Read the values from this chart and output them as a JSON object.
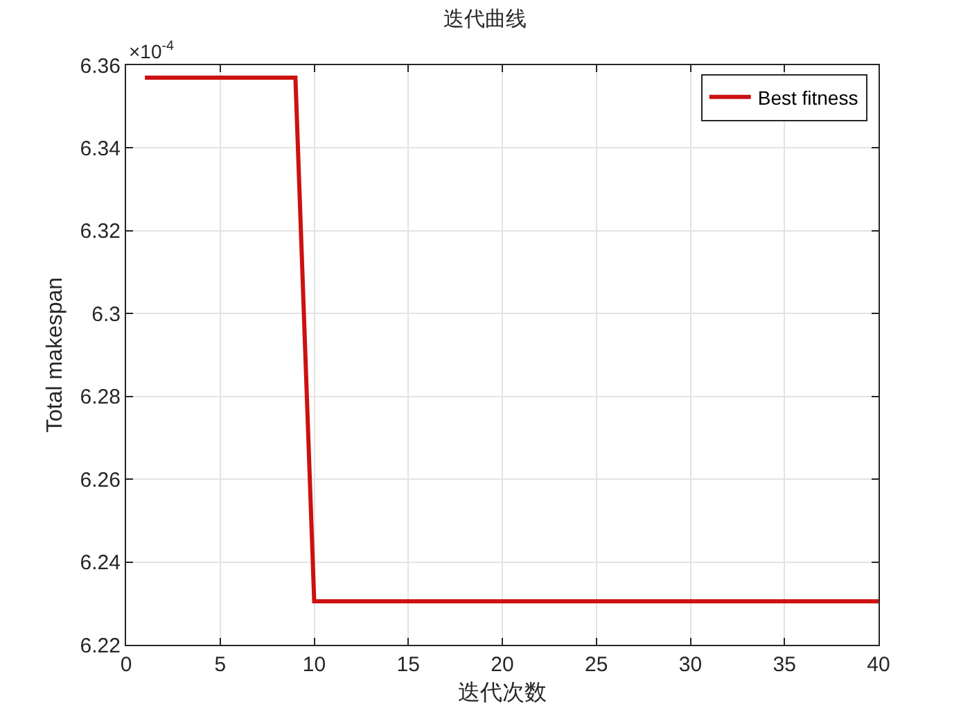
{
  "chart_data": {
    "type": "line",
    "title": "迭代曲线",
    "xlabel": "迭代次数",
    "ylabel": "Total makespan",
    "annotations": [
      "×10$^{-4}$"
    ],
    "series": [
      {
        "name": "Best fitness",
        "color": "#cc1111",
        "x": [
          1,
          9,
          10,
          40
        ],
        "values": [
          6.357,
          6.357,
          6.2305,
          6.2305
        ]
      }
    ],
    "xlim": [
      0,
      40
    ],
    "xticks": [
      0,
      5,
      10,
      15,
      20,
      25,
      30,
      35,
      40
    ],
    "ylim": [
      6.22,
      6.36
    ],
    "yticks": [
      6.22,
      6.24,
      6.26,
      6.28,
      6.3,
      6.32,
      6.34,
      6.36
    ],
    "grid": true,
    "legend": "top right",
    "marker": "none",
    "line_style": "solid"
  }
}
